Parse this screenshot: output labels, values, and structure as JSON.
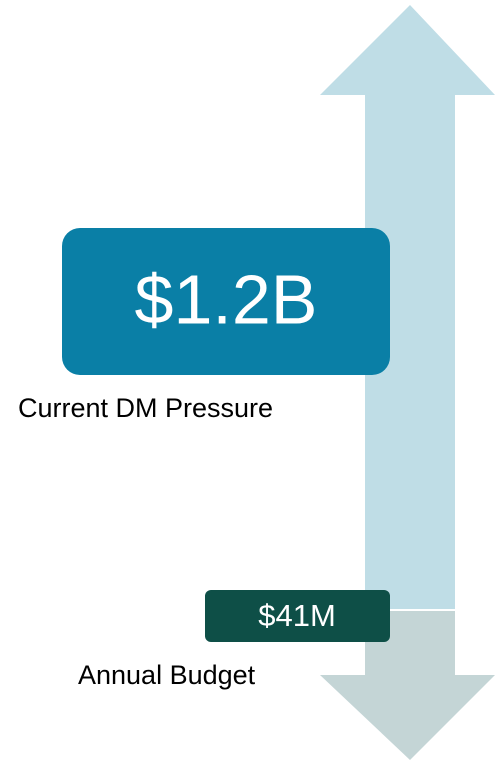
{
  "items": [
    {
      "value": "$1.2B",
      "label": "Current DM Pressure"
    },
    {
      "value": "$41M",
      "label": "Annual Budget"
    }
  ]
}
